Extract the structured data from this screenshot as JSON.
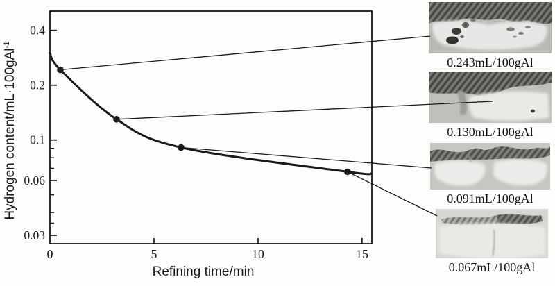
{
  "figure": {
    "description": "Hydrogen content versus refining time curve with four micrograph insets"
  },
  "chart_data": {
    "type": "line",
    "title": "",
    "xlabel": "Refining time/min",
    "ylabel": "Hydrogen content/mL·100gAl⁻¹",
    "ylabel_base": "Hydrogen content/mL·100gAl",
    "ylabel_sup": "-1",
    "x_scale": "linear",
    "y_scale": "log",
    "grid": false,
    "x_ticks": [
      0,
      5,
      10,
      15
    ],
    "y_ticks": [
      0.4,
      0.2,
      0.1,
      0.06,
      0.03
    ],
    "y_minor_ticks": [
      0.09,
      0.08,
      0.07,
      0.05,
      0.04,
      0.035
    ],
    "x_range": [
      0,
      15.47
    ],
    "y_range": [
      0.027,
      0.51
    ],
    "marker": "filled-circle",
    "line_color": "#1a1a1a",
    "points_x": [
      0.5,
      3.2,
      6.3,
      14.3
    ],
    "points_y": [
      0.243,
      0.13,
      0.091,
      0.067
    ],
    "curve_x": [
      0,
      0.5,
      3.2,
      6.3,
      14.3,
      15.45
    ],
    "curve_y": [
      0.3,
      0.243,
      0.13,
      0.091,
      0.067,
      0.0655
    ]
  },
  "insets": [
    {
      "caption": "0.243mL/100gAl"
    },
    {
      "caption": "0.130mL/100gAl"
    },
    {
      "caption": "0.091mL/100gAl"
    },
    {
      "caption": "0.067mL/100gAl"
    }
  ]
}
